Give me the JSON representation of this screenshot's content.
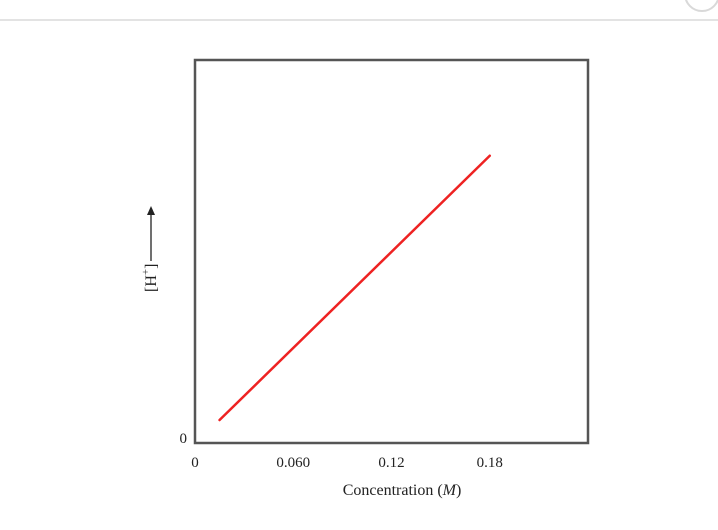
{
  "chart_data": {
    "type": "line",
    "title": "",
    "xlabel": "Concentration (",
    "xlabel_unit": "M",
    "xlabel_close": ")",
    "ylabel": "[H",
    "ylabel_sup": "+",
    "ylabel_close": "]",
    "x_ticks": [
      "0",
      "0.060",
      "0.12",
      "0.18"
    ],
    "x_tick_values": [
      0,
      0.06,
      0.12,
      0.18
    ],
    "y_ticks": [
      "0"
    ],
    "xlim": [
      0,
      0.24
    ],
    "ylim": [
      0,
      1
    ],
    "grid": false,
    "series": [
      {
        "x": [
          0.015,
          0.18
        ],
        "y": [
          0.06,
          0.75
        ],
        "color": "#ee2222"
      }
    ]
  }
}
